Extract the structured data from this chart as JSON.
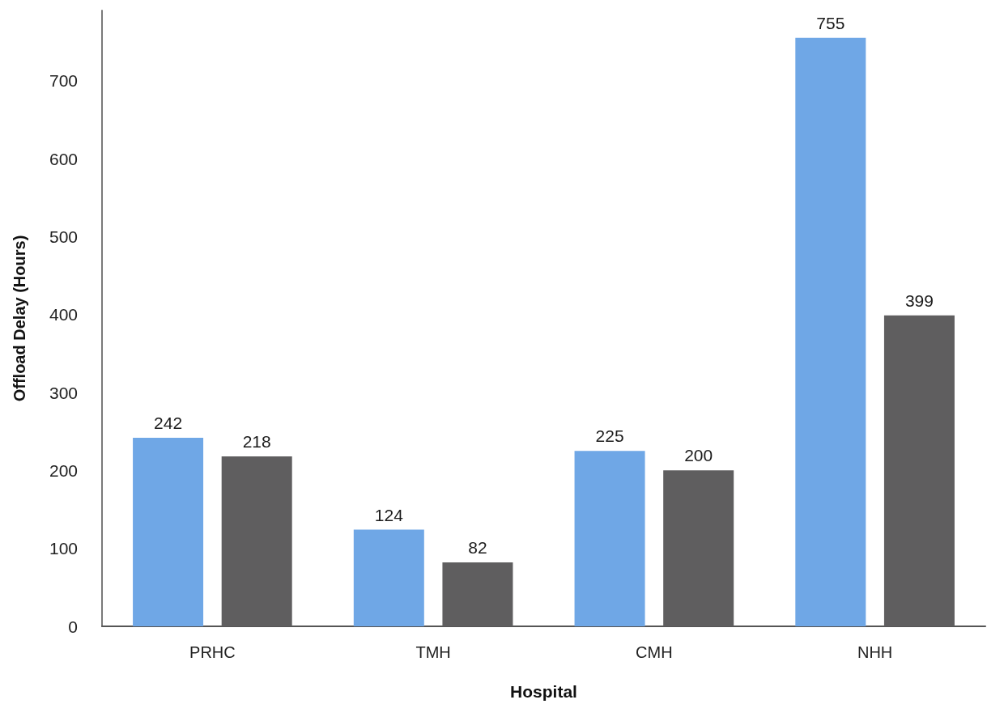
{
  "chart_data": {
    "type": "bar",
    "xlabel": "Hospital",
    "ylabel": "Offload Delay (Hours)",
    "categories": [
      "PRHC",
      "TMH",
      "CMH",
      "NHH"
    ],
    "series": [
      {
        "color": "#6fa7e6",
        "values": [
          242,
          124,
          225,
          755
        ]
      },
      {
        "color": "#5f5e5f",
        "values": [
          218,
          82,
          200,
          399
        ]
      }
    ],
    "ylim": [
      0,
      790
    ],
    "yticks": [
      0,
      100,
      200,
      300,
      400,
      500,
      600,
      700
    ],
    "data_labels": true
  }
}
